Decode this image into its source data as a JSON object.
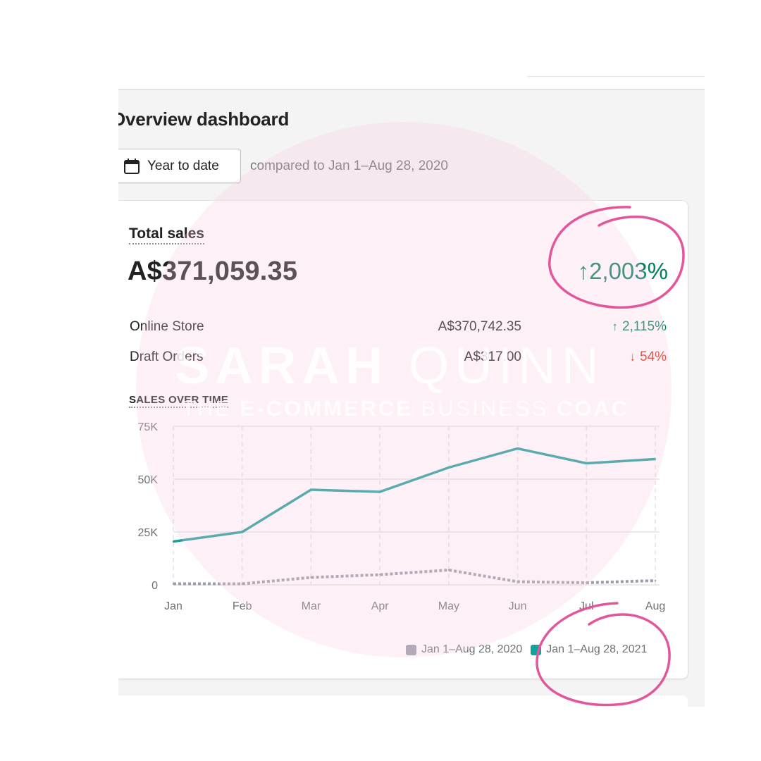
{
  "page": {
    "title": "Overview dashboard",
    "date_range_button": "Year to date",
    "compare_text": "compared to Jan 1–Aug 28, 2020"
  },
  "total_sales": {
    "label": "Total sales",
    "value": "A$371,059.35",
    "change": "2,003%",
    "change_direction": "up",
    "rows": [
      {
        "label": "Online Store",
        "value": "A$370,742.35",
        "change": "2,115%",
        "direction": "up"
      },
      {
        "label": "Draft Orders",
        "value": "A$317.00",
        "change": "54%",
        "direction": "down"
      }
    ]
  },
  "sales_over_time": {
    "label": "SALES OVER TIME"
  },
  "chart_data": {
    "type": "line",
    "categories": [
      "Jan",
      "Feb",
      "Mar",
      "Apr",
      "May",
      "Jun",
      "Jul",
      "Aug"
    ],
    "y_ticks": [
      "0",
      "25K",
      "50K",
      "75K"
    ],
    "ylim": [
      0,
      75000
    ],
    "grid": true,
    "legend_position": "bottom-right",
    "series": [
      {
        "name": "Jan 1–Aug 28, 2020",
        "color": "#9a9ca8",
        "style": "dotted",
        "values": [
          500,
          500,
          3500,
          4800,
          7000,
          1500,
          1000,
          2000
        ]
      },
      {
        "name": "Jan 1–Aug 28, 2021",
        "color": "#1d9e9a",
        "style": "solid",
        "values": [
          20500,
          25000,
          45000,
          44000,
          55500,
          64500,
          57500,
          59500
        ]
      }
    ]
  },
  "watermark": {
    "name_bold": "SARAH",
    "name_thin": "QUINN",
    "tag_pre": "THE",
    "tag_bold": "E-COMMERCE",
    "tag_mid": "BUSINESS",
    "tag_end": "COAC"
  },
  "colors": {
    "accent_positive": "#007f5f",
    "accent_negative": "#d72c0d",
    "highlight": "#e4569b"
  },
  "icons": {
    "calendar": "calendar-icon",
    "up": "arrow-up-icon",
    "down": "arrow-down-icon"
  }
}
